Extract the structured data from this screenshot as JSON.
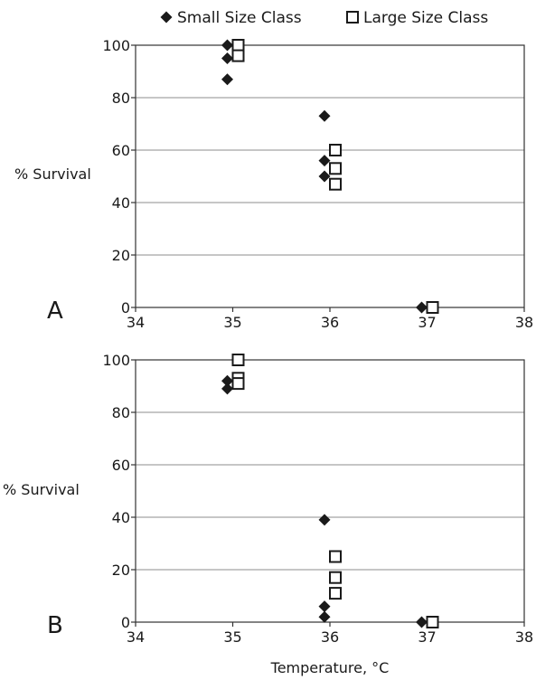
{
  "legend": [
    {
      "label": "Small Size Class",
      "marker": "diamond"
    },
    {
      "label": "Large Size Class",
      "marker": "square"
    }
  ],
  "colors": {
    "marker": "#1a1a1a",
    "grid": "#8c8c8c"
  },
  "chart_data": [
    {
      "type": "scatter",
      "panel_label": "A",
      "ylabel": "% Survival",
      "xlabel": "",
      "xlim": [
        34,
        38
      ],
      "ylim": [
        0,
        100
      ],
      "xticks": [
        34,
        35,
        36,
        37,
        38
      ],
      "yticks": [
        0,
        20,
        40,
        60,
        80,
        100
      ],
      "grid": "horizontal",
      "legend_position": "top",
      "series": [
        {
          "name": "Small Size Class",
          "marker": "diamond",
          "points": [
            [
              35,
              100
            ],
            [
              35,
              95
            ],
            [
              35,
              87
            ],
            [
              36,
              73
            ],
            [
              36,
              56
            ],
            [
              36,
              50
            ],
            [
              37,
              0
            ]
          ]
        },
        {
          "name": "Large Size Class",
          "marker": "square",
          "points": [
            [
              35,
              100
            ],
            [
              35,
              96
            ],
            [
              36,
              60
            ],
            [
              36,
              53
            ],
            [
              36,
              47
            ],
            [
              37,
              0
            ]
          ]
        }
      ]
    },
    {
      "type": "scatter",
      "panel_label": "B",
      "ylabel": "% Survival",
      "xlabel": "Temperature, °C",
      "xlim": [
        34,
        38
      ],
      "ylim": [
        0,
        100
      ],
      "xticks": [
        34,
        35,
        36,
        37,
        38
      ],
      "yticks": [
        0,
        20,
        40,
        60,
        80,
        100
      ],
      "grid": "horizontal",
      "series": [
        {
          "name": "Small Size Class",
          "marker": "diamond",
          "points": [
            [
              35,
              92
            ],
            [
              35,
              89
            ],
            [
              36,
              39
            ],
            [
              36,
              6
            ],
            [
              36,
              2
            ],
            [
              37,
              0
            ]
          ]
        },
        {
          "name": "Large Size Class",
          "marker": "square",
          "points": [
            [
              35,
              100
            ],
            [
              35,
              93
            ],
            [
              35,
              91
            ],
            [
              36,
              25
            ],
            [
              36,
              17
            ],
            [
              36,
              11
            ],
            [
              37,
              0
            ]
          ]
        }
      ]
    }
  ]
}
